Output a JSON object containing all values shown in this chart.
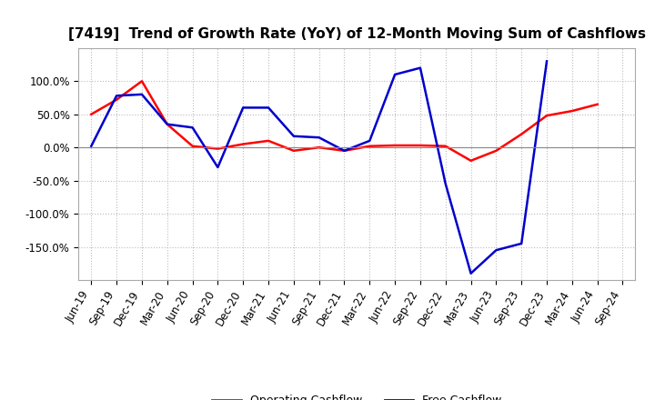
{
  "title": "[7419]  Trend of Growth Rate (YoY) of 12-Month Moving Sum of Cashflows",
  "x_labels": [
    "Jun-19",
    "Sep-19",
    "Dec-19",
    "Mar-20",
    "Jun-20",
    "Sep-20",
    "Dec-20",
    "Mar-21",
    "Jun-21",
    "Sep-21",
    "Dec-21",
    "Mar-22",
    "Jun-22",
    "Sep-22",
    "Dec-22",
    "Mar-23",
    "Jun-23",
    "Sep-23",
    "Dec-23",
    "Mar-24",
    "Jun-24",
    "Sep-24"
  ],
  "operating_cashflow": [
    50,
    72,
    100,
    35,
    2,
    -2,
    5,
    10,
    -5,
    0,
    -5,
    2,
    3,
    3,
    2,
    -20,
    -5,
    20,
    48,
    55,
    65,
    null
  ],
  "free_cashflow": [
    2,
    78,
    80,
    35,
    30,
    -30,
    60,
    60,
    17,
    15,
    -5,
    10,
    110,
    120,
    -55,
    -190,
    -155,
    -145,
    130,
    null,
    null,
    null
  ],
  "ylim": [
    -200,
    150
  ],
  "yticks": [
    -150,
    -100,
    -50,
    0,
    50,
    100
  ],
  "ytick_labels": [
    "-150.0%",
    "-100.0%",
    "-50.0%",
    "0.0%",
    "50.0%",
    "100.0%"
  ],
  "operating_color": "#ff0000",
  "free_color": "#0000cc",
  "background_color": "#ffffff",
  "plot_bg_color": "#ffffff",
  "grid_color": "#aaaaaa",
  "legend_labels": [
    "Operating Cashflow",
    "Free Cashflow"
  ],
  "title_fontsize": 11,
  "tick_fontsize": 8.5,
  "legend_fontsize": 9
}
